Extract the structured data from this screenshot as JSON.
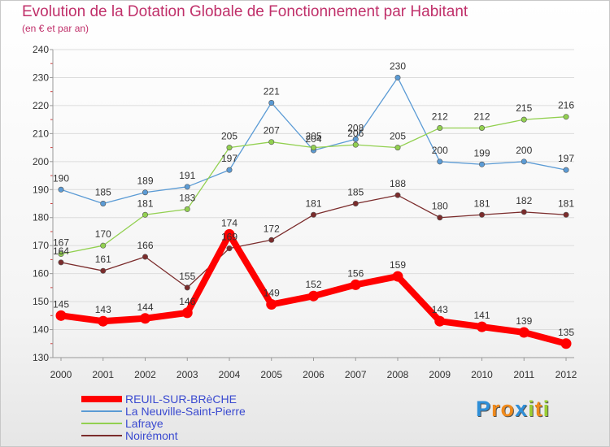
{
  "header": {
    "title": "Evolution de la Dotation Globale de Fonctionnement par Habitant",
    "subtitle": "(en € et par an)"
  },
  "logo": {
    "text": "Proxiti",
    "letters": [
      {
        "ch": "P",
        "color": "#2f8fd8"
      },
      {
        "ch": "r",
        "color": "#f08a1c"
      },
      {
        "ch": "o",
        "color": "#f08a1c"
      },
      {
        "ch": "x",
        "color": "#2f8fd8"
      },
      {
        "ch": "i",
        "color": "#9acd32"
      },
      {
        "ch": "t",
        "color": "#f08a1c"
      },
      {
        "ch": "i",
        "color": "#9acd32"
      }
    ]
  },
  "chart_data": {
    "type": "line",
    "title": "Evolution de la Dotation Globale de Fonctionnement par Habitant",
    "subtitle": "(en € et par an)",
    "x": [
      "2000",
      "2001",
      "2002",
      "2003",
      "2004",
      "2005",
      "2006",
      "2007",
      "2008",
      "2009",
      "2010",
      "2011",
      "2012"
    ],
    "ylim": [
      130,
      240
    ],
    "yticks": [
      130,
      140,
      150,
      160,
      170,
      180,
      190,
      200,
      210,
      220,
      230,
      240
    ],
    "grid": "horizontal",
    "legend_position": "bottom-left",
    "series": [
      {
        "name": "REUIL-SUR-BRèCHE",
        "color": "#ff0000",
        "width": 8,
        "marker": 6.5,
        "values": [
          145,
          143,
          144,
          146,
          174,
          149,
          152,
          156,
          159,
          143,
          141,
          139,
          135
        ]
      },
      {
        "name": "La Neuville-Saint-Pierre",
        "color": "#5b9bd5",
        "width": 1.3,
        "marker": 3.2,
        "values": [
          190,
          185,
          189,
          191,
          197,
          221,
          204,
          208,
          230,
          200,
          199,
          200,
          197
        ]
      },
      {
        "name": "Lafraye",
        "color": "#92d050",
        "width": 1.3,
        "marker": 3.2,
        "values": [
          167,
          170,
          181,
          183,
          205,
          207,
          205,
          206,
          205,
          212,
          212,
          215,
          216
        ]
      },
      {
        "name": "Noirémont",
        "color": "#7b2c2c",
        "width": 1.3,
        "marker": 3.2,
        "values": [
          164,
          161,
          166,
          155,
          169,
          172,
          181,
          185,
          188,
          180,
          181,
          182,
          181
        ]
      }
    ]
  }
}
